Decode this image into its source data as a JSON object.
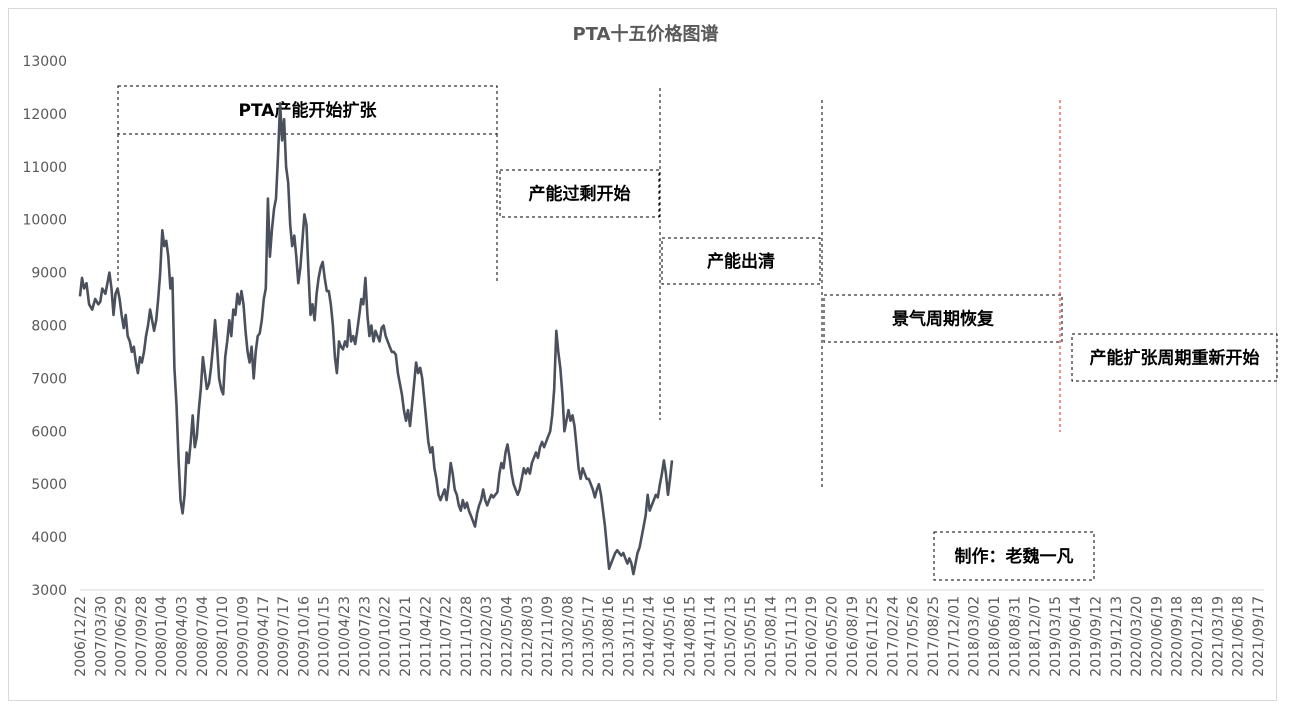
{
  "chart_data": {
    "type": "line",
    "title": "PTA十五价格图谱",
    "xlabel": "",
    "ylabel": "",
    "ylim": [
      3000,
      13000
    ],
    "y_ticks": [
      "3000",
      "4000",
      "5000",
      "6000",
      "7000",
      "8000",
      "9000",
      "10000",
      "11000",
      "12000",
      "13000"
    ],
    "x_tick_labels": [
      "2006/12/22",
      "2007/03/30",
      "2007/06/29",
      "2007/09/28",
      "2008/01/04",
      "2008/04/03",
      "2008/07/04",
      "2008/10/10",
      "2009/01/09",
      "2009/04/17",
      "2009/07/17",
      "2009/10/16",
      "2010/01/15",
      "2010/04/23",
      "2010/07/23",
      "2010/10/22",
      "2011/01/21",
      "2011/04/22",
      "2011/07/22",
      "2011/10/28",
      "2012/02/03",
      "2012/05/04",
      "2012/08/03",
      "2012/11/09",
      "2013/02/08",
      "2013/05/17",
      "2013/08/16",
      "2013/11/15",
      "2014/02/14",
      "2014/05/16",
      "2014/08/15",
      "2014/11/14",
      "2015/02/13",
      "2015/05/15",
      "2015/08/14",
      "2015/11/13",
      "2016/02/19",
      "2016/05/20",
      "2016/08/19",
      "2016/11/25",
      "2017/02/24",
      "2017/05/26",
      "2017/08/25",
      "2017/12/01",
      "2018/03/02",
      "2018/06/01",
      "2018/08/31",
      "2018/12/07",
      "2019/03/15",
      "2019/06/14",
      "2019/09/12",
      "2019/12/13",
      "2020/03/20",
      "2020/06/19",
      "2020/09/18",
      "2020/12/18",
      "2021/03/19",
      "2021/06/18",
      "2021/09/17"
    ],
    "series": [
      {
        "color": "#4a505c",
        "values": [
          [
            0,
            8550
          ],
          [
            0.1,
            8900
          ],
          [
            0.2,
            8700
          ],
          [
            0.32,
            8800
          ],
          [
            0.45,
            8400
          ],
          [
            0.6,
            8300
          ],
          [
            0.75,
            8500
          ],
          [
            0.9,
            8400
          ],
          [
            1.0,
            8450
          ],
          [
            1.1,
            8700
          ],
          [
            1.25,
            8600
          ],
          [
            1.35,
            8800
          ],
          [
            1.45,
            9000
          ],
          [
            1.55,
            8700
          ],
          [
            1.65,
            8200
          ],
          [
            1.75,
            8600
          ],
          [
            1.85,
            8700
          ],
          [
            1.95,
            8500
          ],
          [
            2.05,
            8200
          ],
          [
            2.15,
            7950
          ],
          [
            2.25,
            8200
          ],
          [
            2.35,
            7800
          ],
          [
            2.45,
            7700
          ],
          [
            2.55,
            7500
          ],
          [
            2.65,
            7600
          ],
          [
            2.75,
            7300
          ],
          [
            2.85,
            7100
          ],
          [
            2.95,
            7400
          ],
          [
            3.05,
            7300
          ],
          [
            3.15,
            7500
          ],
          [
            3.25,
            7800
          ],
          [
            3.35,
            8000
          ],
          [
            3.45,
            8300
          ],
          [
            3.55,
            8100
          ],
          [
            3.65,
            7900
          ],
          [
            3.75,
            8100
          ],
          [
            3.85,
            8500
          ],
          [
            3.95,
            9000
          ],
          [
            4.05,
            9800
          ],
          [
            4.15,
            9500
          ],
          [
            4.25,
            9600
          ],
          [
            4.35,
            9300
          ],
          [
            4.45,
            8700
          ],
          [
            4.55,
            8900
          ],
          [
            4.65,
            7200
          ],
          [
            4.75,
            6500
          ],
          [
            4.85,
            5500
          ],
          [
            4.95,
            4700
          ],
          [
            5.05,
            4450
          ],
          [
            5.15,
            4800
          ],
          [
            5.25,
            5600
          ],
          [
            5.35,
            5400
          ],
          [
            5.45,
            5800
          ],
          [
            5.55,
            6300
          ],
          [
            5.65,
            5700
          ],
          [
            5.75,
            5900
          ],
          [
            5.85,
            6400
          ],
          [
            5.95,
            6800
          ],
          [
            6.05,
            7400
          ],
          [
            6.15,
            7100
          ],
          [
            6.25,
            6800
          ],
          [
            6.35,
            6900
          ],
          [
            6.45,
            7200
          ],
          [
            6.55,
            7600
          ],
          [
            6.65,
            8100
          ],
          [
            6.75,
            7600
          ],
          [
            6.85,
            7000
          ],
          [
            6.95,
            6800
          ],
          [
            7.05,
            6700
          ],
          [
            7.15,
            7400
          ],
          [
            7.25,
            7700
          ],
          [
            7.35,
            8100
          ],
          [
            7.45,
            7800
          ],
          [
            7.55,
            8300
          ],
          [
            7.65,
            8200
          ],
          [
            7.75,
            8600
          ],
          [
            7.85,
            8400
          ],
          [
            7.95,
            8650
          ],
          [
            8.05,
            8400
          ],
          [
            8.15,
            7900
          ],
          [
            8.25,
            7500
          ],
          [
            8.35,
            7300
          ],
          [
            8.45,
            7600
          ],
          [
            8.55,
            7000
          ],
          [
            8.65,
            7500
          ],
          [
            8.75,
            7800
          ],
          [
            8.85,
            7850
          ],
          [
            8.95,
            8100
          ],
          [
            9.05,
            8500
          ],
          [
            9.15,
            8700
          ],
          [
            9.25,
            10400
          ],
          [
            9.35,
            9300
          ],
          [
            9.45,
            9800
          ],
          [
            9.55,
            10200
          ],
          [
            9.65,
            10400
          ],
          [
            9.75,
            11200
          ],
          [
            9.85,
            12200
          ],
          [
            9.95,
            11500
          ],
          [
            10.05,
            11900
          ],
          [
            10.15,
            11000
          ],
          [
            10.25,
            10700
          ],
          [
            10.35,
            9900
          ],
          [
            10.45,
            9500
          ],
          [
            10.55,
            9700
          ],
          [
            10.65,
            9300
          ],
          [
            10.75,
            8800
          ],
          [
            10.85,
            9100
          ],
          [
            10.95,
            9600
          ],
          [
            11.05,
            10100
          ],
          [
            11.15,
            9900
          ],
          [
            11.25,
            9000
          ],
          [
            11.35,
            8200
          ],
          [
            11.45,
            8400
          ],
          [
            11.55,
            8100
          ],
          [
            11.65,
            8600
          ],
          [
            11.75,
            8900
          ],
          [
            11.85,
            9100
          ],
          [
            11.95,
            9200
          ],
          [
            12.05,
            8900
          ],
          [
            12.15,
            8650
          ],
          [
            12.25,
            8650
          ],
          [
            12.35,
            8400
          ],
          [
            12.45,
            8000
          ],
          [
            12.55,
            7400
          ],
          [
            12.65,
            7100
          ],
          [
            12.75,
            7700
          ],
          [
            12.85,
            7600
          ],
          [
            12.95,
            7550
          ],
          [
            13.05,
            7700
          ],
          [
            13.15,
            7600
          ],
          [
            13.25,
            8100
          ],
          [
            13.35,
            7700
          ],
          [
            13.45,
            7800
          ],
          [
            13.55,
            7650
          ],
          [
            13.65,
            7900
          ],
          [
            13.75,
            8200
          ],
          [
            13.85,
            8500
          ],
          [
            13.95,
            8400
          ],
          [
            14.05,
            8900
          ],
          [
            14.15,
            8200
          ],
          [
            14.25,
            7800
          ],
          [
            14.35,
            8000
          ],
          [
            14.45,
            7700
          ],
          [
            14.55,
            7900
          ],
          [
            14.65,
            7800
          ],
          [
            14.75,
            7700
          ],
          [
            14.85,
            7950
          ],
          [
            14.95,
            8000
          ],
          [
            15.05,
            7800
          ],
          [
            15.15,
            7700
          ],
          [
            15.25,
            7600
          ],
          [
            15.35,
            7500
          ],
          [
            15.45,
            7500
          ],
          [
            15.55,
            7450
          ],
          [
            15.65,
            7100
          ],
          [
            15.75,
            6900
          ],
          [
            15.85,
            6700
          ],
          [
            15.95,
            6400
          ],
          [
            16.05,
            6200
          ],
          [
            16.15,
            6400
          ],
          [
            16.25,
            6100
          ],
          [
            16.35,
            6500
          ],
          [
            16.45,
            6900
          ],
          [
            16.55,
            7300
          ],
          [
            16.65,
            7100
          ],
          [
            16.75,
            7200
          ],
          [
            16.85,
            7000
          ],
          [
            16.95,
            6600
          ],
          [
            17.05,
            6200
          ],
          [
            17.15,
            5800
          ],
          [
            17.25,
            5600
          ],
          [
            17.35,
            5700
          ],
          [
            17.45,
            5300
          ],
          [
            17.55,
            5100
          ],
          [
            17.65,
            4800
          ],
          [
            17.75,
            4700
          ],
          [
            17.85,
            4800
          ],
          [
            17.95,
            4900
          ],
          [
            18.05,
            4700
          ],
          [
            18.15,
            5000
          ],
          [
            18.25,
            5400
          ],
          [
            18.35,
            5200
          ],
          [
            18.45,
            4900
          ],
          [
            18.55,
            4800
          ],
          [
            18.65,
            4600
          ],
          [
            18.75,
            4500
          ],
          [
            18.85,
            4700
          ],
          [
            18.95,
            4550
          ],
          [
            19.05,
            4650
          ],
          [
            19.15,
            4500
          ],
          [
            19.25,
            4400
          ],
          [
            19.35,
            4300
          ],
          [
            19.45,
            4200
          ],
          [
            19.55,
            4450
          ],
          [
            19.65,
            4600
          ],
          [
            19.75,
            4700
          ],
          [
            19.85,
            4900
          ],
          [
            19.95,
            4700
          ],
          [
            20.05,
            4600
          ],
          [
            20.15,
            4700
          ],
          [
            20.25,
            4800
          ],
          [
            20.35,
            4750
          ],
          [
            20.45,
            4800
          ],
          [
            20.55,
            4850
          ],
          [
            20.65,
            5200
          ],
          [
            20.75,
            5400
          ],
          [
            20.85,
            5300
          ],
          [
            20.95,
            5600
          ],
          [
            21.05,
            5750
          ],
          [
            21.15,
            5500
          ],
          [
            21.25,
            5200
          ],
          [
            21.35,
            5000
          ],
          [
            21.45,
            4900
          ],
          [
            21.55,
            4800
          ],
          [
            21.65,
            4900
          ],
          [
            21.75,
            5100
          ],
          [
            21.85,
            5300
          ],
          [
            21.95,
            5200
          ],
          [
            22.05,
            5300
          ],
          [
            22.15,
            5200
          ],
          [
            22.25,
            5400
          ],
          [
            22.35,
            5500
          ],
          [
            22.45,
            5600
          ],
          [
            22.55,
            5500
          ],
          [
            22.65,
            5700
          ],
          [
            22.75,
            5800
          ],
          [
            22.85,
            5700
          ],
          [
            22.95,
            5800
          ],
          [
            23.05,
            5900
          ],
          [
            23.15,
            6000
          ],
          [
            23.25,
            6300
          ],
          [
            23.35,
            6800
          ],
          [
            23.45,
            7900
          ],
          [
            23.55,
            7500
          ],
          [
            23.65,
            7200
          ],
          [
            23.75,
            6700
          ],
          [
            23.85,
            6000
          ],
          [
            23.95,
            6200
          ],
          [
            24.05,
            6400
          ],
          [
            24.15,
            6200
          ],
          [
            24.25,
            6300
          ],
          [
            24.35,
            6100
          ],
          [
            24.45,
            5700
          ],
          [
            24.55,
            5300
          ],
          [
            24.65,
            5100
          ],
          [
            24.75,
            5300
          ],
          [
            24.85,
            5200
          ],
          [
            24.95,
            5100
          ],
          [
            25.05,
            5100
          ],
          [
            25.15,
            5000
          ],
          [
            25.25,
            4900
          ],
          [
            25.35,
            4750
          ],
          [
            25.45,
            4900
          ],
          [
            25.55,
            5000
          ],
          [
            25.65,
            4800
          ],
          [
            25.75,
            4500
          ],
          [
            25.85,
            4200
          ],
          [
            25.95,
            3800
          ],
          [
            26.05,
            3400
          ],
          [
            26.15,
            3500
          ],
          [
            26.25,
            3600
          ],
          [
            26.35,
            3700
          ],
          [
            26.45,
            3750
          ],
          [
            26.55,
            3700
          ],
          [
            26.65,
            3650
          ],
          [
            26.75,
            3700
          ],
          [
            26.85,
            3600
          ],
          [
            26.95,
            3500
          ],
          [
            27.05,
            3600
          ],
          [
            27.15,
            3500
          ],
          [
            27.25,
            3300
          ],
          [
            27.35,
            3500
          ],
          [
            27.45,
            3700
          ],
          [
            27.55,
            3800
          ],
          [
            27.65,
            4000
          ],
          [
            27.75,
            4200
          ],
          [
            27.85,
            4400
          ],
          [
            27.95,
            4800
          ],
          [
            28.05,
            4500
          ],
          [
            28.15,
            4600
          ],
          [
            28.25,
            4700
          ],
          [
            28.35,
            4800
          ],
          [
            28.45,
            4750
          ],
          [
            28.55,
            5000
          ],
          [
            28.65,
            5200
          ],
          [
            28.75,
            5450
          ],
          [
            28.85,
            5200
          ],
          [
            28.95,
            4800
          ],
          [
            29.05,
            5100
          ],
          [
            29.15,
            5450
          ]
        ]
      }
    ],
    "annotations": [
      {
        "text": "PTA产能开始扩张"
      },
      {
        "text": "产能过剩开始"
      },
      {
        "text": "产能出清"
      },
      {
        "text": "景气周期恢复"
      },
      {
        "text": "产能扩张周期重新开始"
      },
      {
        "text": "制作：老魏一凡"
      }
    ],
    "grid": false,
    "legend": "none"
  }
}
